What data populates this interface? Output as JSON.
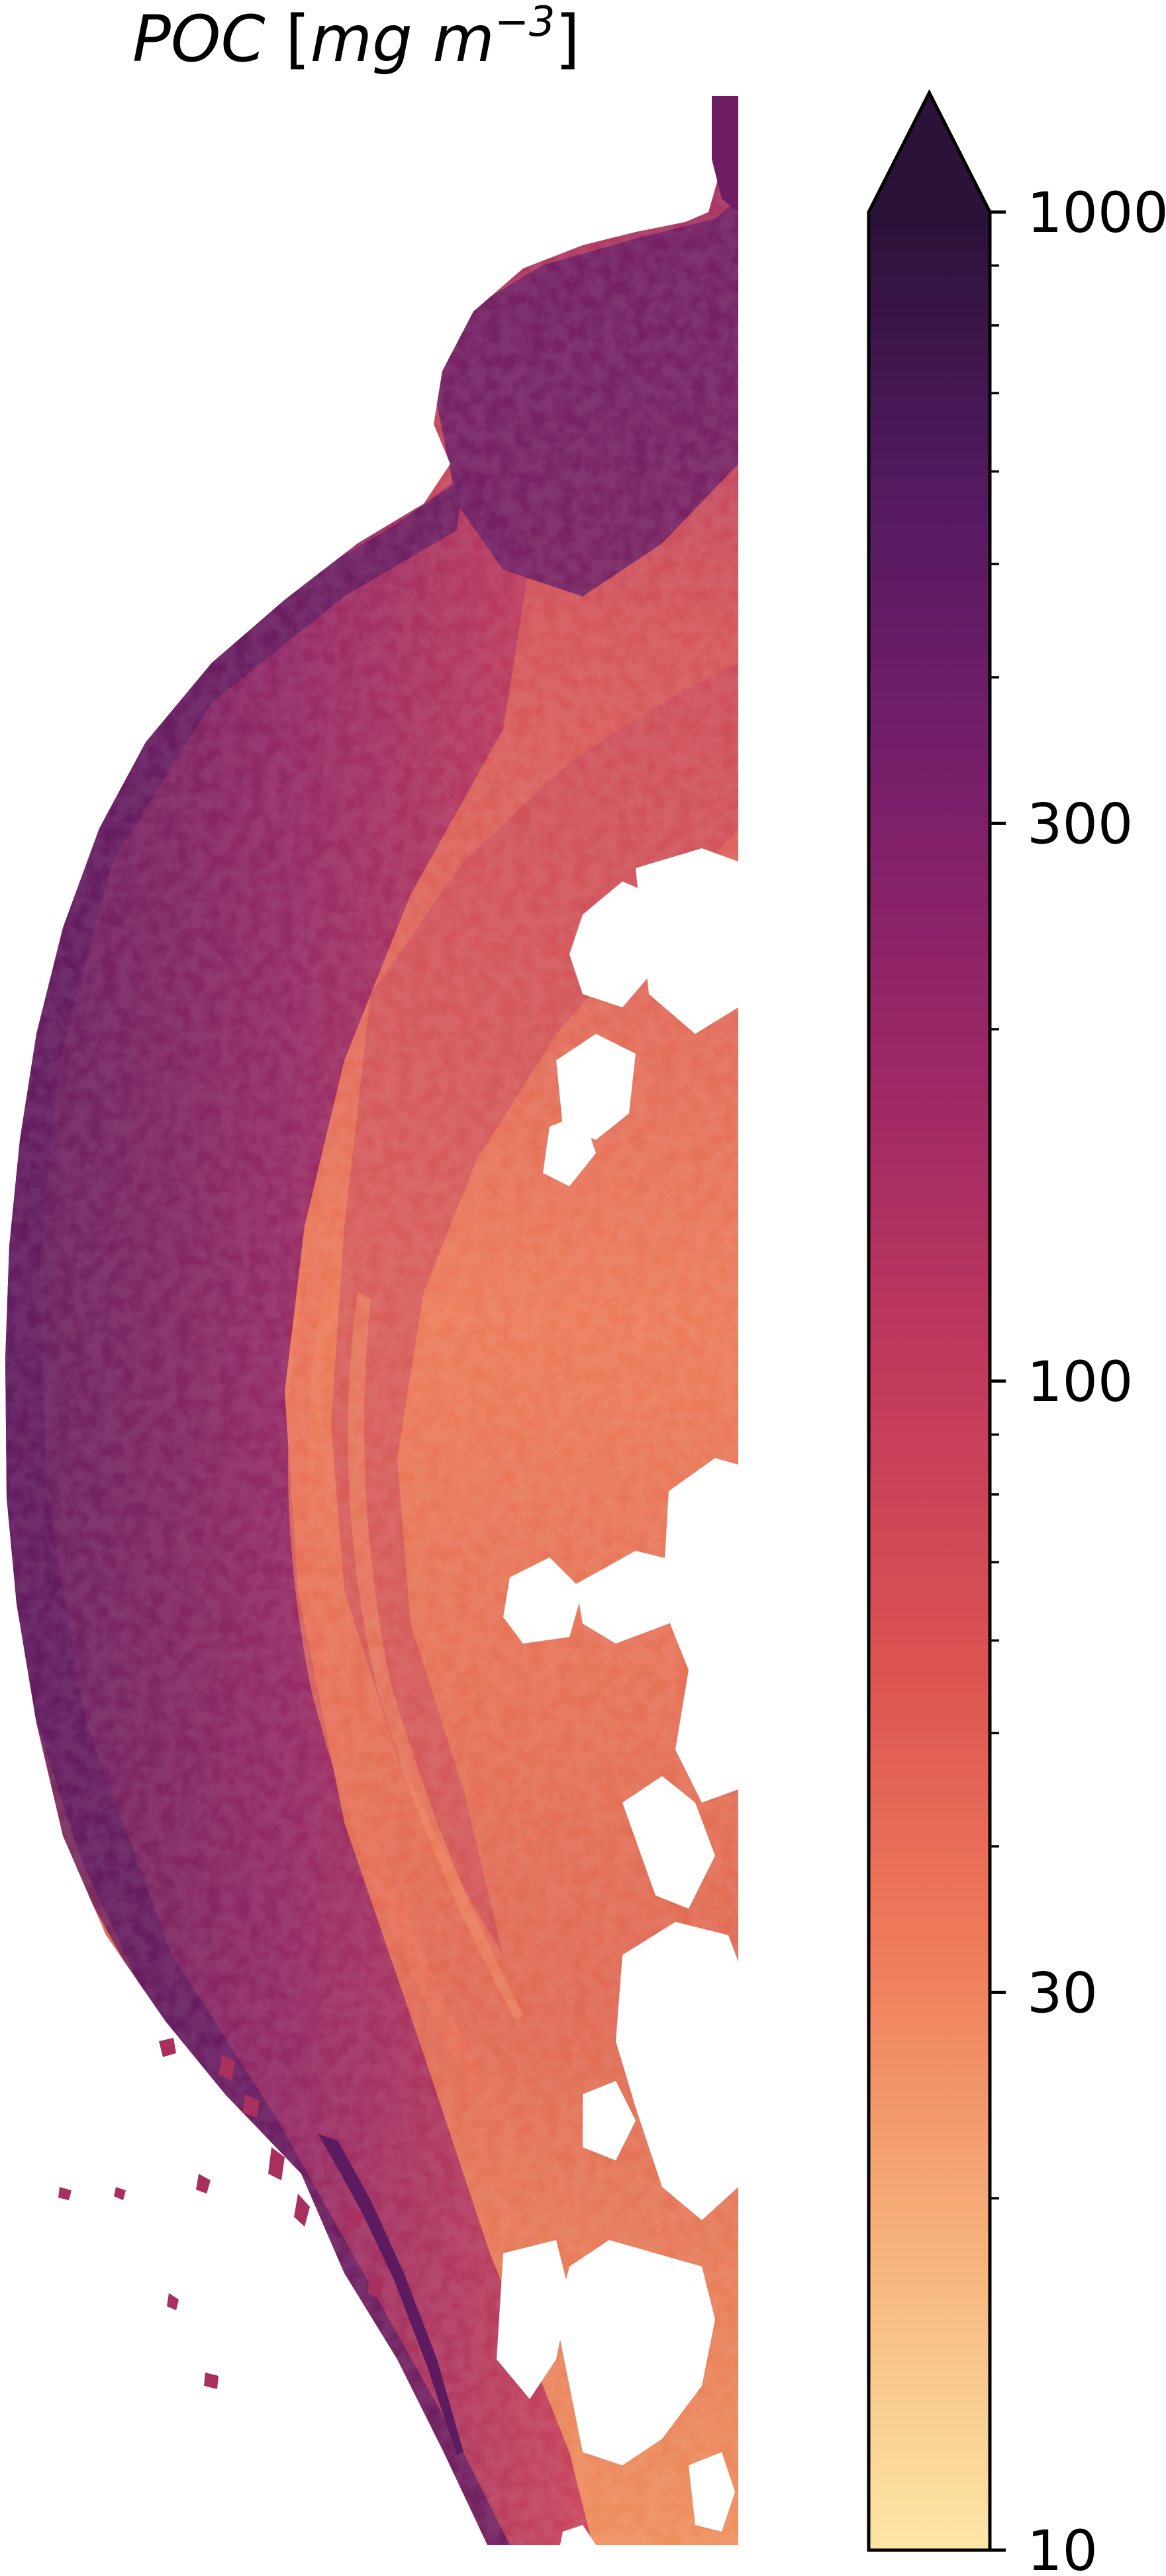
{
  "title": {
    "variable": "POC",
    "units_base": "mg m",
    "units_exponent": "−3"
  },
  "colorbar": {
    "colormap": "flare (cream → orange → magenta → dark purple)",
    "scale": "log",
    "range": [
      10,
      1000
    ],
    "extend": "max",
    "major_ticks": [
      {
        "value": 1000,
        "label": "1000"
      },
      {
        "value": 300,
        "label": "300"
      },
      {
        "value": 100,
        "label": "100"
      },
      {
        "value": 30,
        "label": "30"
      },
      {
        "value": 10,
        "label": "10"
      }
    ],
    "minor_ticks": [
      20,
      40,
      50,
      60,
      70,
      80,
      90,
      200,
      400,
      500,
      600,
      700,
      800,
      900
    ],
    "stops": [
      "#fde6a6",
      "#f6b47c",
      "#f07e5c",
      "#dc5451",
      "#c23a5c",
      "#9f2865",
      "#7b1f6a",
      "#551a62",
      "#2a1238"
    ]
  },
  "map": {
    "description_colors": {
      "coastal": "#6e1c63",
      "mid_shelf": "#b4305f",
      "offshore": "#ea7a58",
      "no_data": "#ffffff"
    }
  }
}
